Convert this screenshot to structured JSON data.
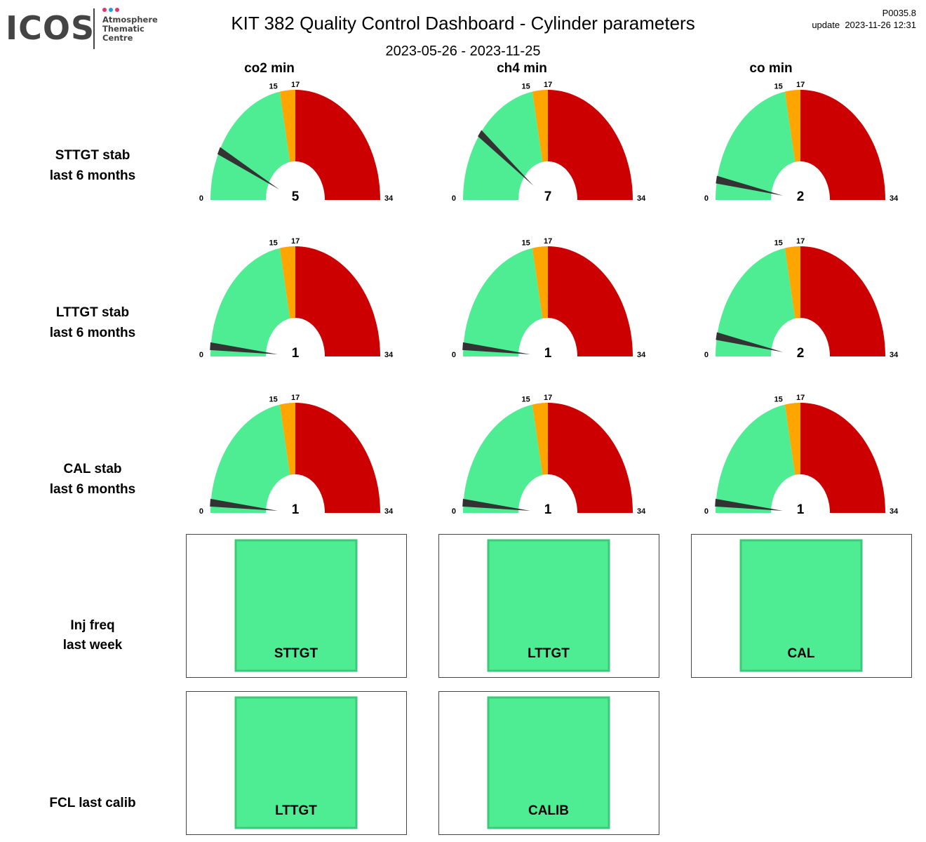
{
  "logo": {
    "name": "ICOS",
    "subtitle": [
      "Atmosphere",
      "Thematic",
      "Centre"
    ],
    "dot_colors": [
      "#e6336f",
      "#1e9de6",
      "#e6336f"
    ]
  },
  "header": {
    "title": "KIT 382 Quality Control Dashboard - Cylinder parameters",
    "date_range": "2023-05-26 - 2023-11-25",
    "version": "P0035.8",
    "update": "update  2023-11-26 12:31"
  },
  "columns": [
    "co2 min",
    "ch4 min",
    "co min"
  ],
  "rows": [
    {
      "line1": "STTGT stab",
      "line2": "last 6 months"
    },
    {
      "line1": "LTTGT stab",
      "line2": "last 6 months"
    },
    {
      "line1": "CAL stab",
      "line2": "last 6 months"
    },
    {
      "line1": "Inj freq",
      "line2": "last week"
    },
    {
      "line1": "FCL last calib",
      "line2": ""
    }
  ],
  "chart_data": {
    "type": "gauge",
    "range": [
      0,
      34
    ],
    "thresholds": [
      15,
      17
    ],
    "tick_labels": [
      "0",
      "15",
      "17",
      "34"
    ],
    "zone_colors": {
      "ok": "#4eed94",
      "warn": "#ffa500",
      "bad": "#cc0000"
    },
    "needle_color": "#333333",
    "values": [
      [
        5,
        7,
        2
      ],
      [
        1,
        1,
        2
      ],
      [
        1,
        1,
        1
      ]
    ]
  },
  "status_boxes": [
    [
      "STTGT",
      "LTTGT",
      "CAL"
    ],
    [
      "LTTGT",
      "CALIB"
    ]
  ],
  "status_color": "#4eed94"
}
